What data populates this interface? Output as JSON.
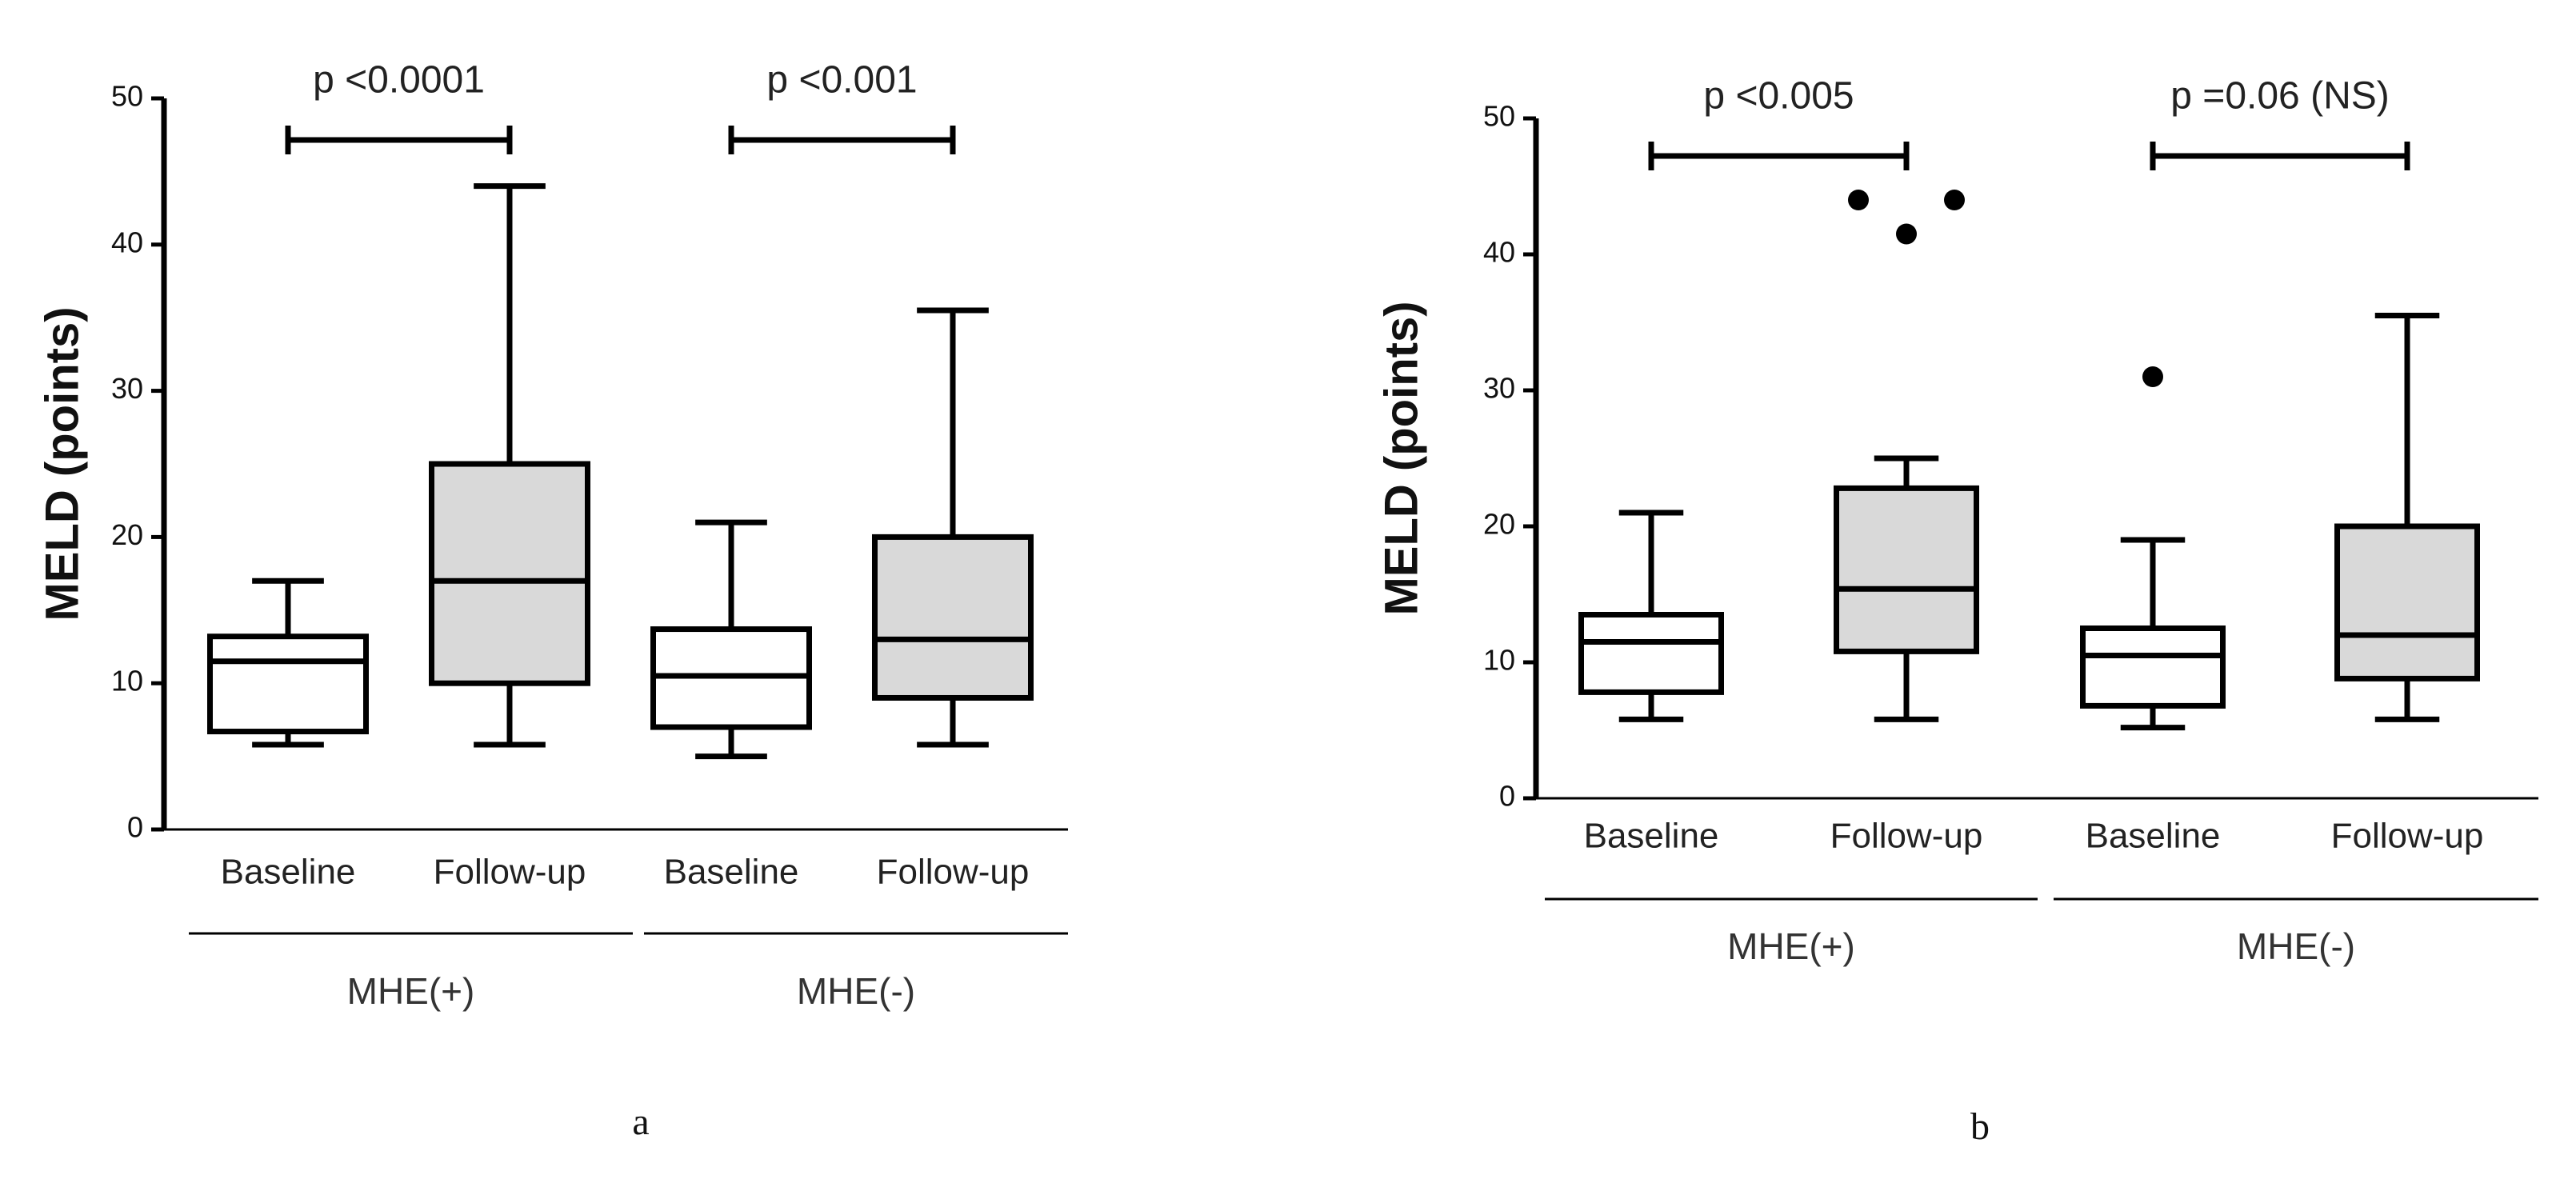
{
  "chart_data": [
    {
      "type": "box",
      "caption": "a",
      "ylabel": "MELD (points)",
      "ylim": [
        0,
        50
      ],
      "yticks": [
        0,
        10,
        20,
        30,
        40,
        50
      ],
      "categories": [
        "Baseline",
        "Follow-up",
        "Baseline",
        "Follow-up"
      ],
      "box_colors": [
        "#ffffff",
        "#d9d9d9",
        "#ffffff",
        "#d9d9d9"
      ],
      "groups": [
        {
          "label": "MHE(+)",
          "p": "p <0.0001"
        },
        {
          "label": "MHE(-)",
          "p": "p <0.001"
        }
      ],
      "boxes": [
        {
          "whislo": 5.8,
          "q1": 6.7,
          "med": 11.5,
          "q3": 13.2,
          "whishi": 17
        },
        {
          "whislo": 5.8,
          "q1": 10,
          "med": 17,
          "q3": 25,
          "whishi": 44
        },
        {
          "whislo": 5,
          "q1": 7,
          "med": 10.5,
          "q3": 13.7,
          "whishi": 21
        },
        {
          "whislo": 5.8,
          "q1": 9,
          "med": 13,
          "q3": 20,
          "whishi": 35.5
        }
      ]
    },
    {
      "type": "box",
      "caption": "b",
      "ylabel": "MELD (points)",
      "ylim": [
        0,
        50
      ],
      "yticks": [
        0,
        10,
        20,
        30,
        40,
        50
      ],
      "categories": [
        "Baseline",
        "Follow-up",
        "Baseline",
        "Follow-up"
      ],
      "box_colors": [
        "#ffffff",
        "#d9d9d9",
        "#ffffff",
        "#d9d9d9"
      ],
      "groups": [
        {
          "label": "MHE(+)",
          "p": "p <0.005"
        },
        {
          "label": "MHE(-)",
          "p": "p =0.06 (NS)"
        }
      ],
      "boxes": [
        {
          "whislo": 5.8,
          "q1": 7.8,
          "med": 11.5,
          "q3": 13.5,
          "whishi": 21
        },
        {
          "whislo": 5.8,
          "q1": 10.8,
          "med": 15.4,
          "q3": 22.8,
          "whishi": 25,
          "fliers": [
            44,
            41.5,
            44
          ]
        },
        {
          "whislo": 5.2,
          "q1": 6.8,
          "med": 10.5,
          "q3": 12.5,
          "whishi": 19,
          "fliers": [
            31
          ]
        },
        {
          "whislo": 5.8,
          "q1": 8.8,
          "med": 12,
          "q3": 20,
          "whishi": 35.5
        }
      ]
    }
  ]
}
